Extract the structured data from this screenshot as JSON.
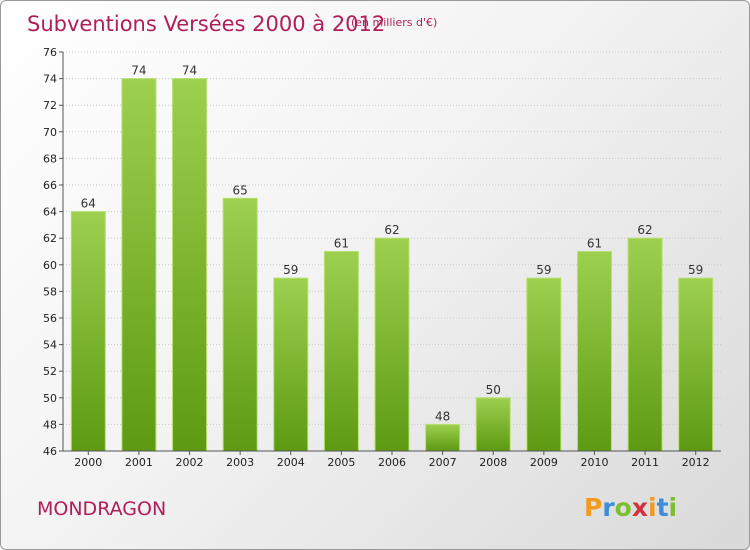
{
  "header": {
    "title": "Subventions Versées 2000 à 2012",
    "subtitle": "(en milliers d'€)"
  },
  "footer": {
    "commune": "MONDRAGON",
    "logo_letters": [
      "P",
      "r",
      "o",
      "x",
      "i",
      "t",
      "i"
    ],
    "logo_colors": [
      "#f39a1e",
      "#3d8ed8",
      "#7cbf2f",
      "#d2323c",
      "#f39a1e",
      "#3d8ed8",
      "#7cbf2f"
    ]
  },
  "colors": {
    "bar_light": "#9dd04f",
    "bar_dark": "#5d9a12",
    "title": "#b01e5a"
  },
  "chart_data": {
    "type": "bar",
    "title": "Subventions Versées 2000 à 2012",
    "subtitle": "(en milliers d'€)",
    "categories": [
      "2000",
      "2001",
      "2002",
      "2003",
      "2004",
      "2005",
      "2006",
      "2007",
      "2008",
      "2009",
      "2010",
      "2011",
      "2012"
    ],
    "values": [
      64,
      74,
      74,
      65,
      59,
      61,
      62,
      48,
      50,
      59,
      61,
      62,
      59
    ],
    "ylim": [
      46,
      76
    ],
    "yticks": [
      46,
      48,
      50,
      52,
      54,
      56,
      58,
      60,
      62,
      64,
      66,
      68,
      70,
      72,
      74,
      76
    ],
    "grid": true,
    "legend": "none"
  }
}
